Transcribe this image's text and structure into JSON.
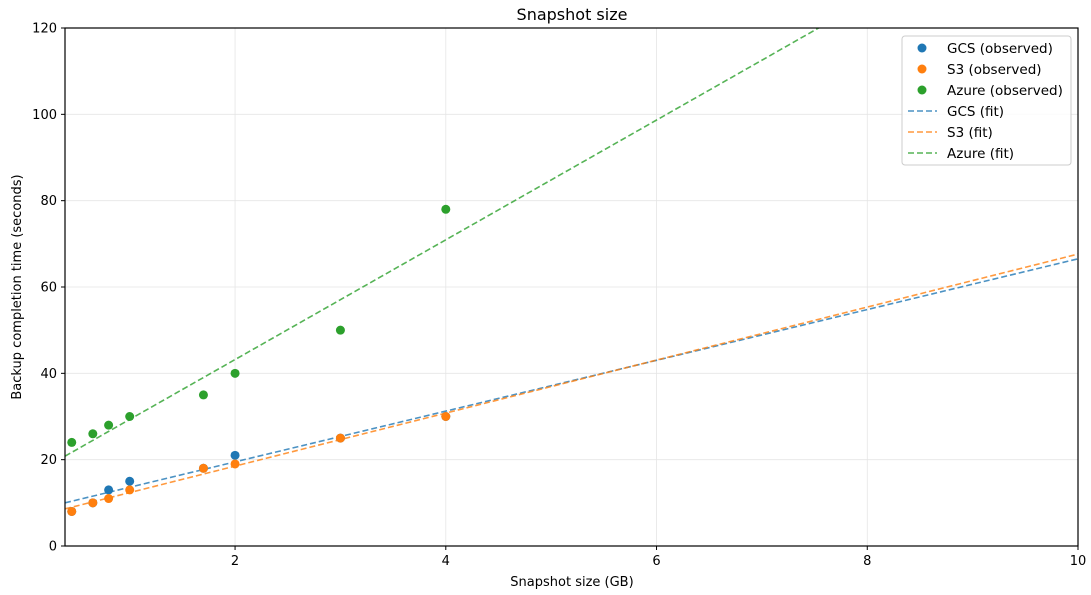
{
  "chart_data": {
    "type": "scatter",
    "title": "Snapshot size",
    "xlabel": "Snapshot size (GB)",
    "ylabel": "Backup completion time (seconds)",
    "xlim": [
      0.386,
      10
    ],
    "ylim": [
      0,
      120
    ],
    "xticks": [
      2,
      4,
      6,
      8,
      10
    ],
    "xtick_labels": [
      "2",
      "4",
      "6",
      "8",
      "10"
    ],
    "yticks": [
      0,
      20,
      40,
      60,
      80,
      100,
      120
    ],
    "ytick_labels": [
      "0",
      "20",
      "40",
      "60",
      "80",
      "100",
      "120"
    ],
    "grid": true,
    "legend_position": "upper right",
    "series": [
      {
        "name": "GCS (observed)",
        "kind": "scatter",
        "color": "#1f77b4",
        "x": [
          0.45,
          0.65,
          0.8,
          1.0,
          1.7,
          2.0,
          3.0,
          4.0
        ],
        "y": [
          8,
          10,
          13,
          15,
          18,
          21,
          25,
          30
        ]
      },
      {
        "name": "S3 (observed)",
        "kind": "scatter",
        "color": "#ff7f0e",
        "x": [
          0.45,
          0.65,
          0.8,
          1.0,
          1.7,
          2.0,
          3.0,
          4.0
        ],
        "y": [
          8,
          10,
          11,
          13,
          18,
          19,
          25,
          30
        ]
      },
      {
        "name": "Azure (observed)",
        "kind": "scatter",
        "color": "#2ca02c",
        "x": [
          0.45,
          0.65,
          0.8,
          1.0,
          1.7,
          2.0,
          3.0,
          4.0
        ],
        "y": [
          24,
          26,
          28,
          30,
          35,
          40,
          50,
          78
        ]
      },
      {
        "name": "GCS (fit)",
        "kind": "line",
        "style": "dashed",
        "color": "#1f77b4",
        "slope": 5.88,
        "intercept": 7.73
      },
      {
        "name": "S3 (fit)",
        "kind": "line",
        "style": "dashed",
        "color": "#ff7f0e",
        "slope": 6.14,
        "intercept": 6.23
      },
      {
        "name": "Azure (fit)",
        "kind": "line",
        "style": "dashed",
        "color": "#2ca02c",
        "slope": 13.87,
        "intercept": 15.45
      }
    ]
  }
}
